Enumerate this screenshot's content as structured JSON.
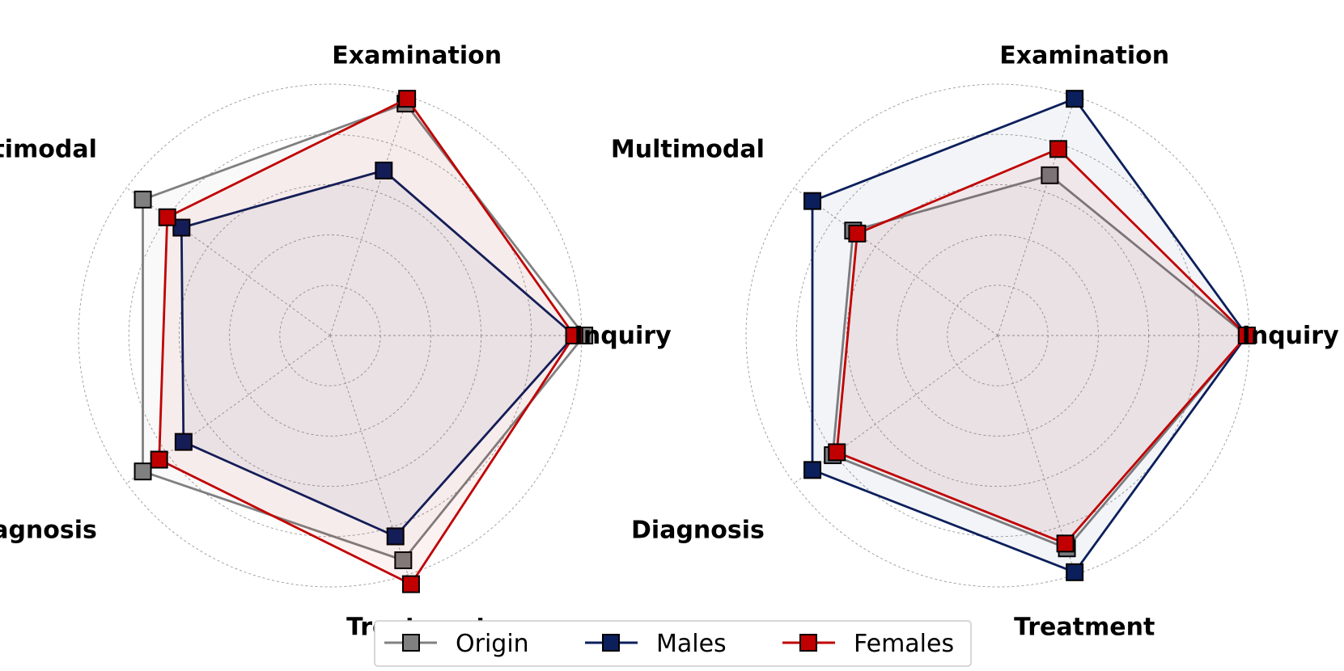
{
  "colors": {
    "Origin": "#808080",
    "Males": "#0b1f5c",
    "Females": "#c00000"
  },
  "legend": [
    "Origin",
    "Males",
    "Females"
  ],
  "chart_data": [
    {
      "type": "radar",
      "axes": [
        "Inquiry",
        "Examination",
        "Multimodal",
        "Diagnosis",
        "Treatment"
      ],
      "rlim": [
        0,
        5
      ],
      "grid": true,
      "series": [
        {
          "name": "Origin",
          "values": [
            5.05,
            4.85,
            4.6,
            4.6,
            4.7
          ]
        },
        {
          "name": "Males",
          "values": [
            4.85,
            3.45,
            3.65,
            3.6,
            4.2
          ]
        },
        {
          "name": "Females",
          "values": [
            4.85,
            4.95,
            4.0,
            4.2,
            5.2
          ]
        }
      ]
    },
    {
      "type": "radar",
      "axes": [
        "Inquiry",
        "Examination",
        "Multimodal",
        "Diagnosis",
        "Treatment"
      ],
      "rlim": [
        0,
        5
      ],
      "grid": true,
      "series": [
        {
          "name": "Origin",
          "values": [
            4.95,
            3.35,
            3.55,
            4.05,
            4.45
          ]
        },
        {
          "name": "Males",
          "values": [
            4.95,
            4.95,
            4.55,
            4.55,
            4.95
          ]
        },
        {
          "name": "Females",
          "values": [
            4.95,
            3.9,
            3.45,
            3.95,
            4.35
          ]
        }
      ]
    }
  ]
}
